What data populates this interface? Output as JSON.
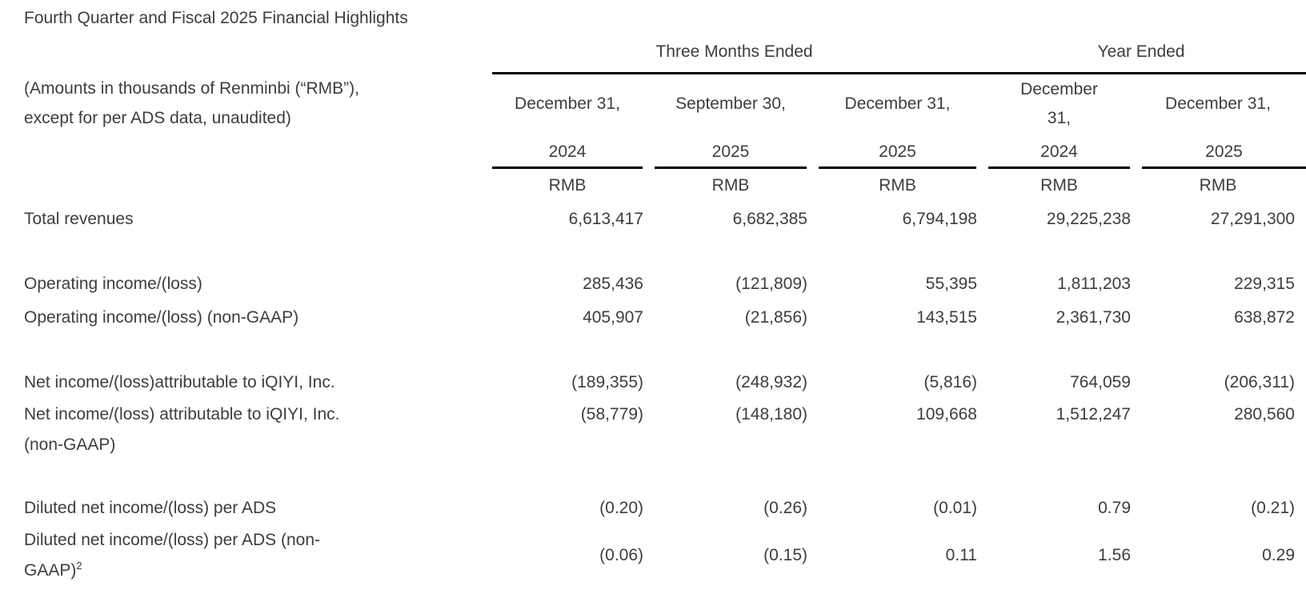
{
  "title": "Fourth Quarter and Fiscal 2025 Financial Highlights",
  "table": {
    "note": "(Amounts in thousands of Renminbi (“RMB”), except for per ADS data, unaudited)",
    "groups": [
      {
        "label": "Three Months Ended"
      },
      {
        "label": "Year Ended"
      }
    ],
    "columns": [
      {
        "date": "December 31,",
        "year": "2024",
        "unit": "RMB"
      },
      {
        "date": "September 30,",
        "year": "2025",
        "unit": "RMB"
      },
      {
        "date": "December 31,",
        "year": "2025",
        "unit": "RMB"
      },
      {
        "date": "December 31,",
        "year": "2024",
        "unit": "RMB"
      },
      {
        "date": "December 31,",
        "year": "2025",
        "unit": "RMB"
      }
    ],
    "sections": [
      [
        {
          "label": "Total revenues",
          "values": [
            "6,613,417",
            "6,682,385",
            "6,794,198",
            "29,225,238",
            "27,291,300"
          ]
        }
      ],
      [
        {
          "label": "Operating income/(loss)",
          "values": [
            "285,436",
            "(121,809)",
            "55,395",
            "1,811,203",
            "229,315"
          ]
        },
        {
          "label": "Operating income/(loss) (non-GAAP)",
          "values": [
            "405,907",
            "(21,856)",
            "143,515",
            "2,361,730",
            "638,872"
          ]
        }
      ],
      [
        {
          "label": "Net income/(loss)attributable to iQIYI, Inc.",
          "values": [
            "(189,355)",
            "(248,932)",
            "(5,816)",
            "764,059",
            "(206,311)"
          ]
        },
        {
          "label": "Net income/(loss) attributable to iQIYI, Inc. (non-GAAP)",
          "values": [
            "(58,779)",
            "(148,180)",
            "109,668",
            "1,512,247",
            "280,560"
          ]
        }
      ],
      [
        {
          "label": "Diluted net income/(loss) per ADS",
          "values": [
            "(0.20)",
            "(0.26)",
            "(0.01)",
            "0.79",
            "(0.21)"
          ]
        },
        {
          "label": "Diluted net income/(loss) per ADS (non-GAAP)",
          "sup": "2",
          "values": [
            "(0.06)",
            "(0.15)",
            "0.11",
            "1.56",
            "0.29"
          ]
        }
      ]
    ]
  },
  "colors": {
    "text": "#3d3d3d",
    "rule": "#000000",
    "background": "#ffffff"
  }
}
